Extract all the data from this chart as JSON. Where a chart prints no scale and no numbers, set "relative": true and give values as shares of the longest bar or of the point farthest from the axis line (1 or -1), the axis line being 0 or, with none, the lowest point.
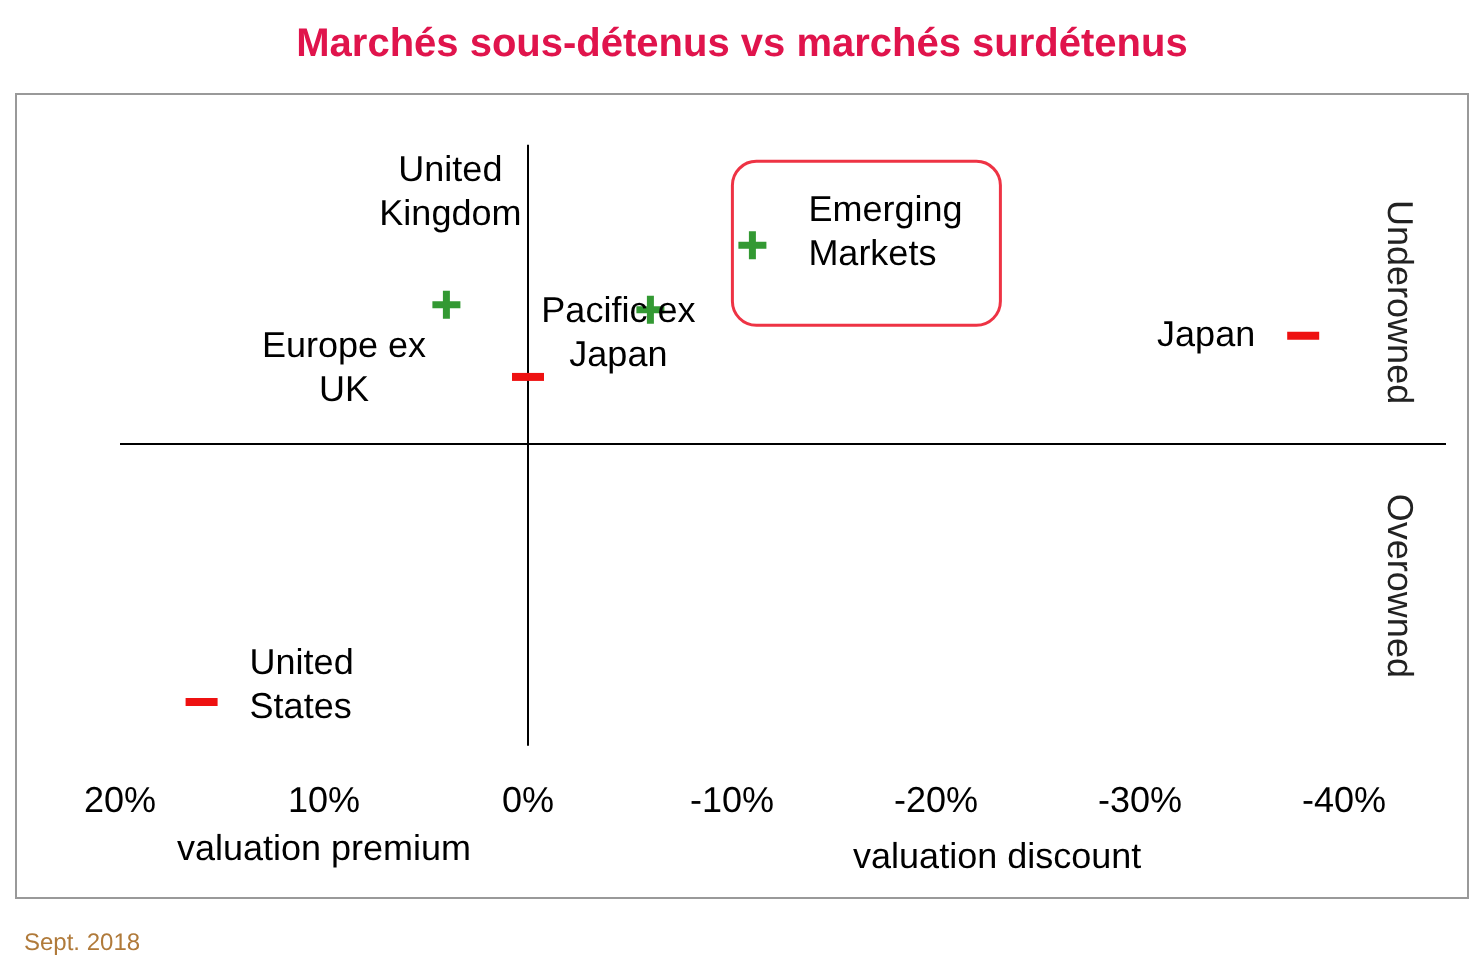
{
  "chart_data": {
    "type": "scatter",
    "title": "Marchés sous-détenus vs marchés surdétenus",
    "relative": true,
    "xlim": [
      20,
      -45
    ],
    "xticks": [
      {
        "value": 20,
        "label": "20%"
      },
      {
        "value": 10,
        "label": "10%"
      },
      {
        "value": 0,
        "label": "0%"
      },
      {
        "value": -10,
        "label": "-10%"
      },
      {
        "value": -20,
        "label": "-20%"
      },
      {
        "value": -30,
        "label": "-30%"
      },
      {
        "value": -40,
        "label": "-40%"
      }
    ],
    "series": [
      {
        "color": "#339933",
        "marker": "cross",
        "x": [
          4,
          -6,
          -11
        ],
        "values": [
          0.54,
          0.52,
          0.77
        ]
      },
      {
        "color": "#ee1111",
        "x": [
          0,
          -38,
          16
        ],
        "values": [
          0.26,
          0.42,
          -1
        ]
      }
    ],
    "annotations": [
      "valuation premium",
      "valuation discount",
      "Underowned",
      "Overowned",
      "Sept. 2018",
      {
        "text": "United Kingdom",
        "x": 4,
        "y": 0.54
      },
      {
        "text": "Europe ex UK",
        "x": 0,
        "y": 0.26
      },
      {
        "text": "Pacific ex Japan",
        "x": -6,
        "y": 0.52
      },
      {
        "text": "Emerging Markets",
        "x": -11,
        "y": 0.77
      },
      {
        "text": "Japan",
        "x": -38,
        "y": 0.42
      },
      {
        "text": "United States",
        "x": 16,
        "y": -1
      }
    ]
  }
}
